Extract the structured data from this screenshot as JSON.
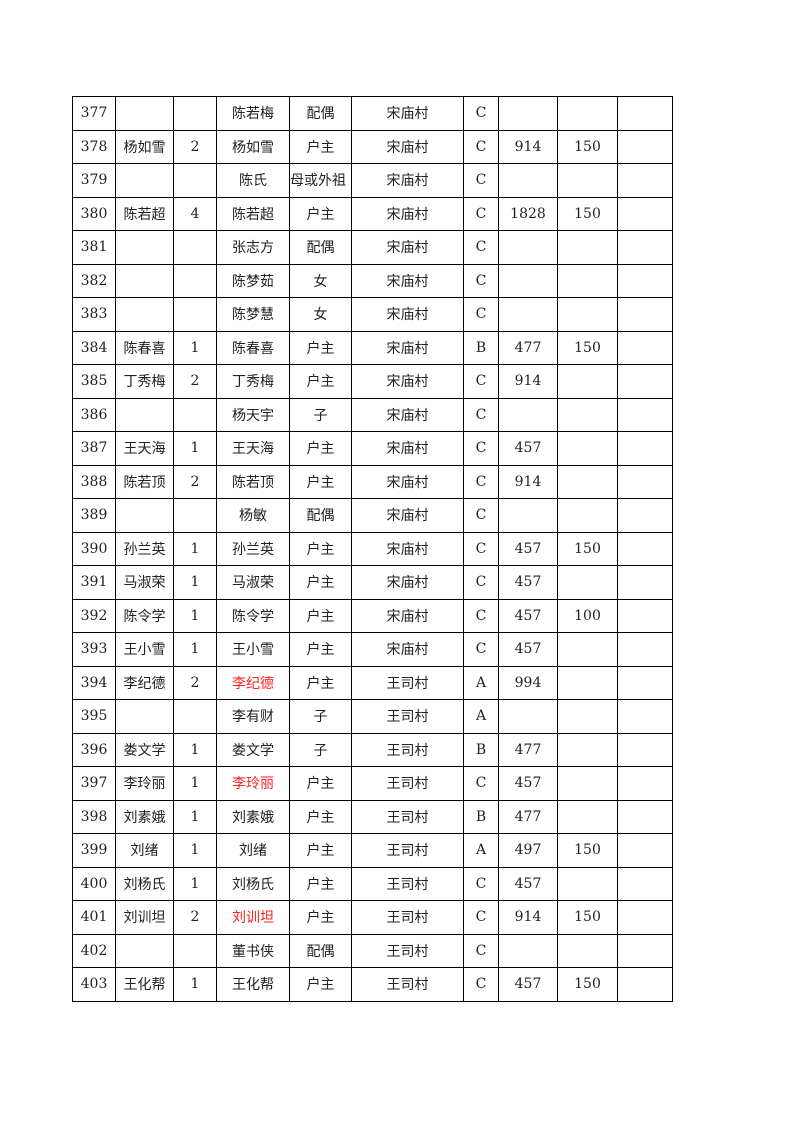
{
  "table": {
    "rows": [
      {
        "no": "377",
        "head": "",
        "count": "",
        "name": "陈若梅",
        "rel": "配偶",
        "village": "宋庙村",
        "grade": "C",
        "amount": "",
        "extra": "",
        "note": "",
        "red": false
      },
      {
        "no": "378",
        "head": "杨如雪",
        "count": "2",
        "name": "杨如雪",
        "rel": "户主",
        "village": "宋庙村",
        "grade": "C",
        "amount": "914",
        "extra": "150",
        "note": "",
        "red": false
      },
      {
        "no": "379",
        "head": "",
        "count": "",
        "name": "陈氏",
        "rel": "母或外祖",
        "village": "宋庙村",
        "grade": "C",
        "amount": "",
        "extra": "",
        "note": "",
        "red": false
      },
      {
        "no": "380",
        "head": "陈若超",
        "count": "4",
        "name": "陈若超",
        "rel": "户主",
        "village": "宋庙村",
        "grade": "C",
        "amount": "1828",
        "extra": "150",
        "note": "",
        "red": false
      },
      {
        "no": "381",
        "head": "",
        "count": "",
        "name": "张志方",
        "rel": "配偶",
        "village": "宋庙村",
        "grade": "C",
        "amount": "",
        "extra": "",
        "note": "",
        "red": false
      },
      {
        "no": "382",
        "head": "",
        "count": "",
        "name": "陈梦茹",
        "rel": "女",
        "village": "宋庙村",
        "grade": "C",
        "amount": "",
        "extra": "",
        "note": "",
        "red": false
      },
      {
        "no": "383",
        "head": "",
        "count": "",
        "name": "陈梦慧",
        "rel": "女",
        "village": "宋庙村",
        "grade": "C",
        "amount": "",
        "extra": "",
        "note": "",
        "red": false
      },
      {
        "no": "384",
        "head": "陈春喜",
        "count": "1",
        "name": "陈春喜",
        "rel": "户主",
        "village": "宋庙村",
        "grade": "B",
        "amount": "477",
        "extra": "150",
        "note": "",
        "red": false
      },
      {
        "no": "385",
        "head": "丁秀梅",
        "count": "2",
        "name": "丁秀梅",
        "rel": "户主",
        "village": "宋庙村",
        "grade": "C",
        "amount": "914",
        "extra": "",
        "note": "",
        "red": false
      },
      {
        "no": "386",
        "head": "",
        "count": "",
        "name": "杨天宇",
        "rel": "子",
        "village": "宋庙村",
        "grade": "C",
        "amount": "",
        "extra": "",
        "note": "",
        "red": false
      },
      {
        "no": "387",
        "head": "王天海",
        "count": "1",
        "name": "王天海",
        "rel": "户主",
        "village": "宋庙村",
        "grade": "C",
        "amount": "457",
        "extra": "",
        "note": "",
        "red": false
      },
      {
        "no": "388",
        "head": "陈若顶",
        "count": "2",
        "name": "陈若顶",
        "rel": "户主",
        "village": "宋庙村",
        "grade": "C",
        "amount": "914",
        "extra": "",
        "note": "",
        "red": false
      },
      {
        "no": "389",
        "head": "",
        "count": "",
        "name": "杨敏",
        "rel": "配偶",
        "village": "宋庙村",
        "grade": "C",
        "amount": "",
        "extra": "",
        "note": "",
        "red": false
      },
      {
        "no": "390",
        "head": "孙兰英",
        "count": "1",
        "name": "孙兰英",
        "rel": "户主",
        "village": "宋庙村",
        "grade": "C",
        "amount": "457",
        "extra": "150",
        "note": "",
        "red": false
      },
      {
        "no": "391",
        "head": "马淑荣",
        "count": "1",
        "name": "马淑荣",
        "rel": "户主",
        "village": "宋庙村",
        "grade": "C",
        "amount": "457",
        "extra": "",
        "note": "",
        "red": false
      },
      {
        "no": "392",
        "head": "陈令学",
        "count": "1",
        "name": "陈令学",
        "rel": "户主",
        "village": "宋庙村",
        "grade": "C",
        "amount": "457",
        "extra": "100",
        "note": "",
        "red": false
      },
      {
        "no": "393",
        "head": "王小雪",
        "count": "1",
        "name": "王小雪",
        "rel": "户主",
        "village": "宋庙村",
        "grade": "C",
        "amount": "457",
        "extra": "",
        "note": "",
        "red": false
      },
      {
        "no": "394",
        "head": "李纪德",
        "count": "2",
        "name": "李纪德",
        "rel": "户主",
        "village": "王司村",
        "grade": "A",
        "amount": "994",
        "extra": "",
        "note": "",
        "red": true
      },
      {
        "no": "395",
        "head": "",
        "count": "",
        "name": "李有财",
        "rel": "子",
        "village": "王司村",
        "grade": "A",
        "amount": "",
        "extra": "",
        "note": "",
        "red": false
      },
      {
        "no": "396",
        "head": "娄文学",
        "count": "1",
        "name": "娄文学",
        "rel": "子",
        "village": "王司村",
        "grade": "B",
        "amount": "477",
        "extra": "",
        "note": "",
        "red": false
      },
      {
        "no": "397",
        "head": "李玲丽",
        "count": "1",
        "name": "李玲丽",
        "rel": "户主",
        "village": "王司村",
        "grade": "C",
        "amount": "457",
        "extra": "",
        "note": "",
        "red": true
      },
      {
        "no": "398",
        "head": "刘素娥",
        "count": "1",
        "name": "刘素娥",
        "rel": "户主",
        "village": "王司村",
        "grade": "B",
        "amount": "477",
        "extra": "",
        "note": "",
        "red": false
      },
      {
        "no": "399",
        "head": "刘绪",
        "count": "1",
        "name": "刘绪",
        "rel": "户主",
        "village": "王司村",
        "grade": "A",
        "amount": "497",
        "extra": "150",
        "note": "",
        "red": false
      },
      {
        "no": "400",
        "head": "刘杨氏",
        "count": "1",
        "name": "刘杨氏",
        "rel": "户主",
        "village": "王司村",
        "grade": "C",
        "amount": "457",
        "extra": "",
        "note": "",
        "red": false
      },
      {
        "no": "401",
        "head": "刘训坦",
        "count": "2",
        "name": "刘训坦",
        "rel": "户主",
        "village": "王司村",
        "grade": "C",
        "amount": "914",
        "extra": "150",
        "note": "",
        "red": true
      },
      {
        "no": "402",
        "head": "",
        "count": "",
        "name": "董书侠",
        "rel": "配偶",
        "village": "王司村",
        "grade": "C",
        "amount": "",
        "extra": "",
        "note": "",
        "red": false
      },
      {
        "no": "403",
        "head": "王化帮",
        "count": "1",
        "name": "王化帮",
        "rel": "户主",
        "village": "王司村",
        "grade": "C",
        "amount": "457",
        "extra": "150",
        "note": "",
        "red": false
      }
    ]
  },
  "colors": {
    "highlight": "#ff2020",
    "text": "#222222"
  }
}
